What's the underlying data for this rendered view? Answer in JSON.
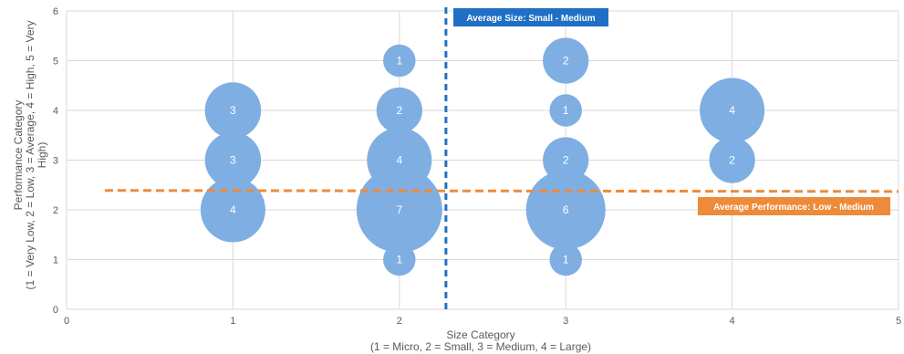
{
  "chart_data": {
    "type": "bubble",
    "xlim": [
      0,
      5
    ],
    "ylim": [
      0,
      6
    ],
    "x_ticks": [
      "0",
      "1",
      "2",
      "3",
      "4",
      "5"
    ],
    "y_ticks": [
      "0",
      "1",
      "2",
      "3",
      "4",
      "5",
      "6"
    ],
    "xlabel_line1": "Size Category",
    "xlabel_line2": "(1 = Micro, 2 = Small, 3 = Medium, 4 = Large)",
    "ylabel_line1": "Performance Category",
    "ylabel_line2": "(1 = Very Low, 2 = Low, 3 = Average, 4 = High, 5 = Very",
    "ylabel_line3": "High)",
    "grid": true,
    "points": [
      {
        "x": 1,
        "y": 4,
        "size": 3,
        "label": "3"
      },
      {
        "x": 1,
        "y": 3,
        "size": 3,
        "label": "3"
      },
      {
        "x": 1,
        "y": 2,
        "size": 4,
        "label": "4"
      },
      {
        "x": 2,
        "y": 5,
        "size": 1,
        "label": "1"
      },
      {
        "x": 2,
        "y": 4,
        "size": 2,
        "label": "2"
      },
      {
        "x": 2,
        "y": 3,
        "size": 4,
        "label": "4"
      },
      {
        "x": 2,
        "y": 2,
        "size": 7,
        "label": "7"
      },
      {
        "x": 2,
        "y": 1,
        "size": 1,
        "label": "1"
      },
      {
        "x": 3,
        "y": 5,
        "size": 2,
        "label": "2"
      },
      {
        "x": 3,
        "y": 4,
        "size": 1,
        "label": "1"
      },
      {
        "x": 3,
        "y": 3,
        "size": 2,
        "label": "2"
      },
      {
        "x": 3,
        "y": 2,
        "size": 6,
        "label": "6"
      },
      {
        "x": 3,
        "y": 1,
        "size": 1,
        "label": "1"
      },
      {
        "x": 4,
        "y": 4,
        "size": 4,
        "label": "4"
      },
      {
        "x": 4,
        "y": 3,
        "size": 2,
        "label": "2"
      }
    ],
    "avg_size": {
      "value": 2.28,
      "label": "Average Size: Small - Medium",
      "color": "#1F6FC5"
    },
    "avg_performance": {
      "start": [
        0.23,
        2.39
      ],
      "end": [
        5.0,
        2.37
      ],
      "label": "Average Performance: Low - Medium",
      "color": "#ED8B3A"
    },
    "bubble_color": "#7FAEE3"
  }
}
